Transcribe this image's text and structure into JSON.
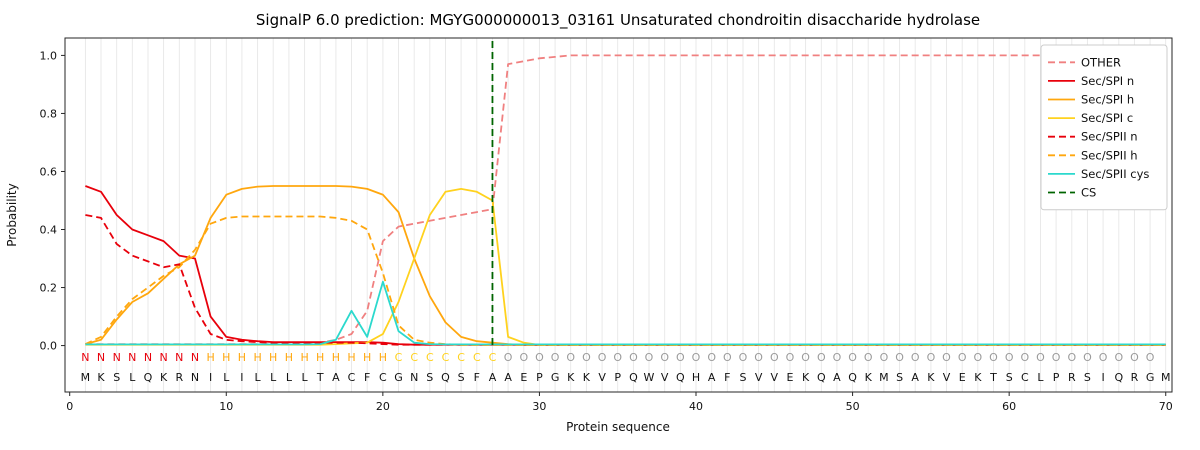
{
  "chart_data": {
    "type": "line",
    "title": "SignalP 6.0 prediction: MGYG000000013_03161 Unsaturated chondroitin disaccharide hydrolase",
    "xlabel": "Protein sequence",
    "ylabel": "Probability",
    "xlim": [
      -0.3,
      70.4
    ],
    "ylim": [
      -0.16,
      1.06
    ],
    "x_ticks": [
      0,
      10,
      20,
      30,
      40,
      50,
      60,
      70
    ],
    "y_ticks": [
      0.0,
      0.2,
      0.4,
      0.6,
      0.8,
      1.0
    ],
    "grid": "vertical-per-residue",
    "legend_position": "upper right",
    "x_first": 1,
    "sequence": "MKSLQKRNILILLLLTACFCGNSQSFAAEPGKKVPQWVQHAFSVVEKQAQKMSAKVEKTSCLPRSIQRGM",
    "region_labels": "NNNNNNNNHHHHHHHHHHHHCCCCCCCOOOOOOOOOOOOOOOOOOOOOOOOOOOOOOOOOOOOOOOOOO",
    "region_colors": {
      "N": "#e8000b",
      "H": "#ffa70e",
      "C": "#ffd21e",
      "O": "#9b9b9b"
    },
    "cs": {
      "name": "CS",
      "position": 27,
      "color": "#006400",
      "dash": "7,4"
    },
    "series": [
      {
        "name": "OTHER",
        "color": "#f08080",
        "dash": "7,4",
        "values": [
          0.005,
          0.005,
          0.005,
          0.005,
          0.005,
          0.005,
          0.005,
          0.005,
          0.005,
          0.005,
          0.005,
          0.005,
          0.005,
          0.005,
          0.005,
          0.01,
          0.02,
          0.04,
          0.12,
          0.36,
          0.41,
          0.42,
          0.43,
          0.44,
          0.45,
          0.46,
          0.47,
          0.97,
          0.98,
          0.99,
          0.995,
          1.0,
          1.0,
          1.0,
          1.0,
          1.0,
          1.0,
          1.0,
          1.0,
          1.0,
          1.0,
          1.0,
          1.0,
          1.0,
          1.0,
          1.0,
          1.0,
          1.0,
          1.0,
          1.0,
          1.0,
          1.0,
          1.0,
          1.0,
          1.0,
          1.0,
          1.0,
          1.0,
          1.0,
          1.0,
          1.0,
          1.0,
          1.0,
          1.0,
          1.0,
          1.0,
          1.0,
          1.0,
          1.0,
          1.0
        ]
      },
      {
        "name": "Sec/SPI n",
        "color": "#e8000b",
        "dash": null,
        "values": [
          0.55,
          0.53,
          0.45,
          0.4,
          0.38,
          0.36,
          0.31,
          0.3,
          0.1,
          0.03,
          0.02,
          0.015,
          0.012,
          0.012,
          0.012,
          0.012,
          0.012,
          0.012,
          0.012,
          0.01,
          0.005,
          0.003,
          0.003,
          0.003,
          0.003,
          0.003,
          0.003,
          0.003,
          0.003,
          0.003,
          0.003,
          0.003,
          0.003,
          0.003,
          0.003,
          0.003,
          0.003,
          0.003,
          0.003,
          0.003,
          0.003,
          0.003,
          0.003,
          0.003,
          0.003,
          0.003,
          0.003,
          0.003,
          0.003,
          0.003,
          0.003,
          0.003,
          0.003,
          0.003,
          0.003,
          0.003,
          0.003,
          0.003,
          0.003,
          0.003,
          0.003,
          0.003,
          0.003,
          0.003,
          0.003,
          0.003,
          0.003,
          0.003,
          0.003,
          0.003
        ]
      },
      {
        "name": "Sec/SPI h",
        "color": "#ffa70e",
        "dash": null,
        "values": [
          0.005,
          0.02,
          0.09,
          0.15,
          0.18,
          0.23,
          0.28,
          0.31,
          0.44,
          0.52,
          0.54,
          0.548,
          0.55,
          0.55,
          0.55,
          0.55,
          0.55,
          0.548,
          0.54,
          0.52,
          0.46,
          0.3,
          0.17,
          0.08,
          0.03,
          0.015,
          0.01,
          0.005,
          0.002,
          0.002,
          0.002,
          0.002,
          0.002,
          0.002,
          0.002,
          0.002,
          0.002,
          0.002,
          0.002,
          0.002,
          0.002,
          0.002,
          0.002,
          0.002,
          0.002,
          0.002,
          0.002,
          0.002,
          0.002,
          0.002,
          0.002,
          0.002,
          0.002,
          0.002,
          0.002,
          0.002,
          0.002,
          0.002,
          0.002,
          0.002,
          0.002,
          0.002,
          0.002,
          0.002,
          0.002,
          0.002,
          0.002,
          0.002,
          0.002,
          0.002
        ]
      },
      {
        "name": "Sec/SPI c",
        "color": "#ffd21e",
        "dash": null,
        "values": [
          0.003,
          0.003,
          0.003,
          0.003,
          0.003,
          0.003,
          0.003,
          0.003,
          0.003,
          0.003,
          0.003,
          0.003,
          0.003,
          0.003,
          0.003,
          0.003,
          0.005,
          0.008,
          0.01,
          0.04,
          0.15,
          0.3,
          0.45,
          0.53,
          0.54,
          0.53,
          0.5,
          0.03,
          0.01,
          0.002,
          0.002,
          0.002,
          0.002,
          0.002,
          0.002,
          0.002,
          0.002,
          0.002,
          0.002,
          0.002,
          0.002,
          0.002,
          0.002,
          0.002,
          0.002,
          0.002,
          0.002,
          0.002,
          0.002,
          0.002,
          0.002,
          0.002,
          0.002,
          0.002,
          0.002,
          0.002,
          0.002,
          0.002,
          0.002,
          0.002,
          0.002,
          0.002,
          0.002,
          0.002,
          0.002,
          0.002,
          0.002,
          0.002,
          0.002,
          0.002
        ]
      },
      {
        "name": "Sec/SPII n",
        "color": "#e8000b",
        "dash": "7,4",
        "values": [
          0.45,
          0.44,
          0.35,
          0.31,
          0.29,
          0.27,
          0.28,
          0.13,
          0.04,
          0.02,
          0.015,
          0.012,
          0.01,
          0.01,
          0.01,
          0.01,
          0.01,
          0.01,
          0.008,
          0.005,
          0.003,
          0.003,
          0.003,
          0.003,
          0.003,
          0.003,
          0.003,
          0.003,
          0.003,
          0.003,
          0.003,
          0.003,
          0.003,
          0.003,
          0.003,
          0.003,
          0.003,
          0.003,
          0.003,
          0.003,
          0.003,
          0.003,
          0.003,
          0.003,
          0.003,
          0.003,
          0.003,
          0.003,
          0.003,
          0.003,
          0.003,
          0.003,
          0.003,
          0.003,
          0.003,
          0.003,
          0.003,
          0.003,
          0.003,
          0.003,
          0.003,
          0.003,
          0.003,
          0.003,
          0.003,
          0.003,
          0.003,
          0.003,
          0.003,
          0.003
        ]
      },
      {
        "name": "Sec/SPII h",
        "color": "#ffa70e",
        "dash": "7,4",
        "values": [
          0.005,
          0.03,
          0.1,
          0.16,
          0.2,
          0.24,
          0.27,
          0.33,
          0.42,
          0.44,
          0.445,
          0.445,
          0.445,
          0.445,
          0.445,
          0.445,
          0.44,
          0.43,
          0.4,
          0.25,
          0.07,
          0.02,
          0.01,
          0.005,
          0.002,
          0.002,
          0.002,
          0.002,
          0.002,
          0.002,
          0.002,
          0.002,
          0.002,
          0.002,
          0.002,
          0.002,
          0.002,
          0.002,
          0.002,
          0.002,
          0.002,
          0.002,
          0.002,
          0.002,
          0.002,
          0.002,
          0.002,
          0.002,
          0.002,
          0.002,
          0.002,
          0.002,
          0.002,
          0.002,
          0.002,
          0.002,
          0.002,
          0.002,
          0.002,
          0.002,
          0.002,
          0.002,
          0.002,
          0.002,
          0.002,
          0.002,
          0.002,
          0.002,
          0.002,
          0.002
        ]
      },
      {
        "name": "Sec/SPII cys",
        "color": "#2bd9cd",
        "dash": null,
        "values": [
          0.004,
          0.004,
          0.004,
          0.004,
          0.004,
          0.004,
          0.004,
          0.004,
          0.004,
          0.004,
          0.004,
          0.004,
          0.004,
          0.004,
          0.004,
          0.005,
          0.02,
          0.12,
          0.03,
          0.22,
          0.05,
          0.01,
          0.005,
          0.004,
          0.004,
          0.004,
          0.004,
          0.004,
          0.004,
          0.004,
          0.004,
          0.004,
          0.004,
          0.004,
          0.004,
          0.004,
          0.004,
          0.004,
          0.004,
          0.004,
          0.004,
          0.004,
          0.004,
          0.004,
          0.004,
          0.004,
          0.004,
          0.004,
          0.004,
          0.004,
          0.004,
          0.004,
          0.004,
          0.004,
          0.004,
          0.004,
          0.004,
          0.004,
          0.004,
          0.004,
          0.004,
          0.004,
          0.004,
          0.004,
          0.004,
          0.004,
          0.004,
          0.004,
          0.004,
          0.004
        ]
      }
    ]
  }
}
